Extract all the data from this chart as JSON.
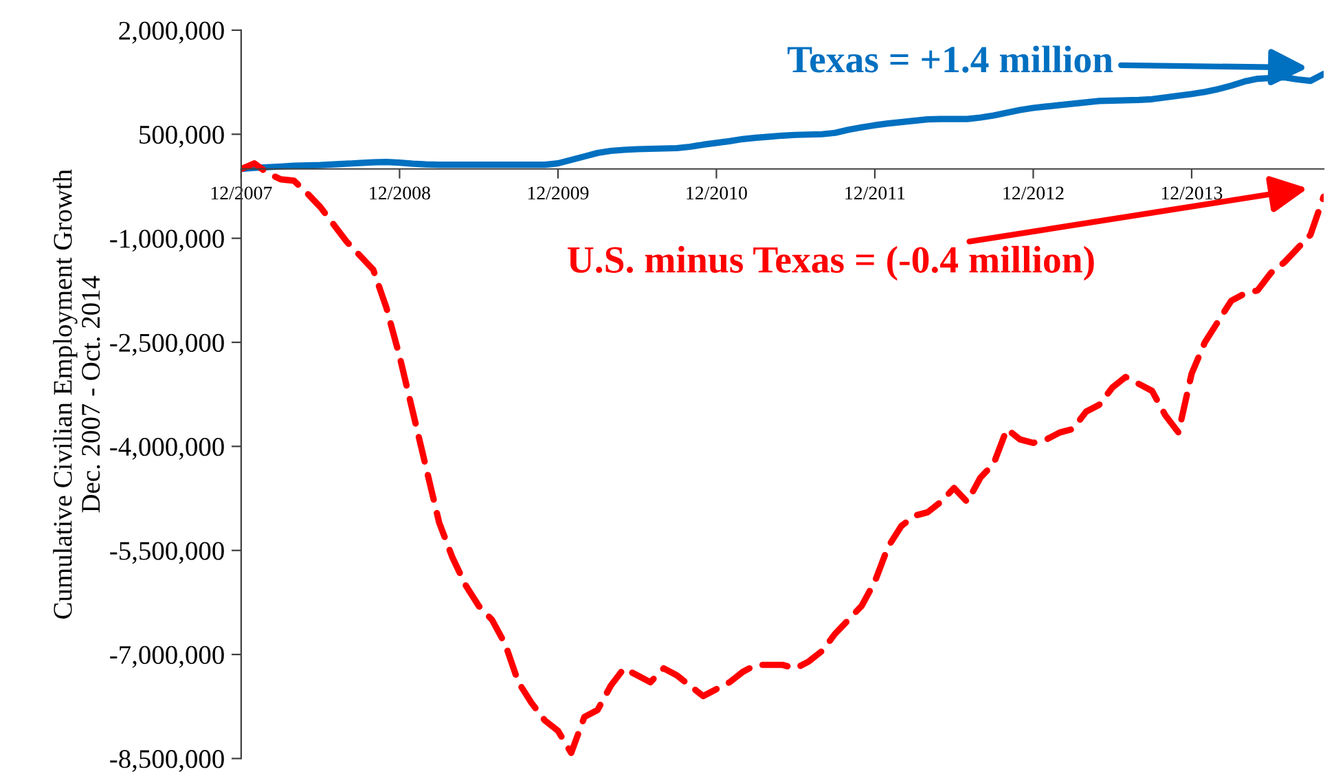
{
  "chart_data": {
    "type": "line",
    "ylabel": "Cumulative Civilian Employment Growth\nDec. 2007 - Oct. 2014",
    "categories": [
      "12/2007",
      null,
      null,
      null,
      null,
      null,
      null,
      null,
      null,
      null,
      null,
      null,
      "12/2008",
      null,
      null,
      null,
      null,
      null,
      null,
      null,
      null,
      null,
      null,
      null,
      "12/2009",
      null,
      null,
      null,
      null,
      null,
      null,
      null,
      null,
      null,
      null,
      null,
      "12/2010",
      null,
      null,
      null,
      null,
      null,
      null,
      null,
      null,
      null,
      null,
      null,
      "12/2011",
      null,
      null,
      null,
      null,
      null,
      null,
      null,
      null,
      null,
      null,
      null,
      "12/2012",
      null,
      null,
      null,
      null,
      null,
      null,
      null,
      null,
      null,
      null,
      null,
      "12/2013",
      null,
      null,
      null,
      null,
      null,
      null,
      null,
      null,
      null,
      null
    ],
    "series": [
      {
        "color": "#0070c0",
        "line_style": "solid",
        "values": [
          0,
          15000,
          25000,
          35000,
          45000,
          50000,
          55000,
          65000,
          75000,
          85000,
          95000,
          100000,
          90000,
          75000,
          65000,
          60000,
          60000,
          60000,
          60000,
          60000,
          60000,
          60000,
          60000,
          60000,
          80000,
          130000,
          180000,
          230000,
          260000,
          275000,
          285000,
          290000,
          295000,
          300000,
          320000,
          350000,
          375000,
          400000,
          430000,
          450000,
          465000,
          480000,
          490000,
          495000,
          500000,
          520000,
          565000,
          600000,
          630000,
          655000,
          675000,
          695000,
          715000,
          720000,
          720000,
          720000,
          740000,
          770000,
          810000,
          850000,
          880000,
          900000,
          920000,
          940000,
          960000,
          980000,
          985000,
          990000,
          995000,
          1005000,
          1030000,
          1055000,
          1080000,
          1110000,
          1150000,
          1200000,
          1260000,
          1300000,
          1310000,
          1320000,
          1290000,
          1270000,
          1370000
        ]
      },
      {
        "color": "#ff0000",
        "line_style": "dashed",
        "values": [
          0,
          80000,
          -60000,
          -150000,
          -170000,
          -350000,
          -550000,
          -800000,
          -1050000,
          -1250000,
          -1450000,
          -2000000,
          -2700000,
          -3500000,
          -4300000,
          -5100000,
          -5600000,
          -6000000,
          -6300000,
          -6500000,
          -6850000,
          -7400000,
          -7700000,
          -7950000,
          -8100000,
          -8420000,
          -7900000,
          -7800000,
          -7450000,
          -7200000,
          -7300000,
          -7400000,
          -7200000,
          -7300000,
          -7450000,
          -7600000,
          -7500000,
          -7400000,
          -7250000,
          -7150000,
          -7150000,
          -7150000,
          -7200000,
          -7100000,
          -6950000,
          -6700000,
          -6500000,
          -6300000,
          -5950000,
          -5450000,
          -5150000,
          -5000000,
          -4950000,
          -4800000,
          -4600000,
          -4800000,
          -4450000,
          -4250000,
          -3750000,
          -3900000,
          -3950000,
          -3900000,
          -3800000,
          -3750000,
          -3500000,
          -3400000,
          -3150000,
          -3000000,
          -3100000,
          -3200000,
          -3550000,
          -3800000,
          -2950000,
          -2500000,
          -2200000,
          -1900000,
          -1800000,
          -1750000,
          -1500000,
          -1350000,
          -1150000,
          -950000,
          -400000
        ]
      }
    ],
    "annotations": [
      "Texas = +1.4 million",
      "U.S. minus Texas = (-0.4 million)"
    ],
    "ylim": [
      -8500000,
      2000000
    ],
    "yticks": [
      {
        "value": -8500000,
        "label": "-8,500,000"
      },
      {
        "value": -7000000,
        "label": "-7,000,000"
      },
      {
        "value": -5500000,
        "label": "-5,500,000"
      },
      {
        "value": -4000000,
        "label": "-4,000,000"
      },
      {
        "value": -2500000,
        "label": "-2,500,000"
      },
      {
        "value": -1000000,
        "label": "-1,000,000"
      },
      {
        "value": 500000,
        "label": "500,000"
      },
      {
        "value": 2000000,
        "label": "2,000,000"
      }
    ],
    "grid": false
  }
}
